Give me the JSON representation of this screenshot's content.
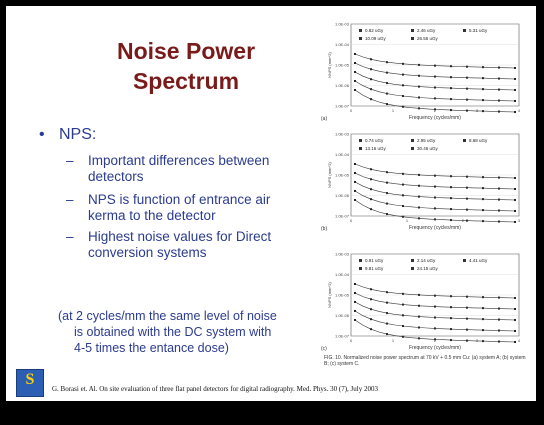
{
  "slide": {
    "title_line1": "Noise Power",
    "title_line2": "Spectrum",
    "bullet_marker": "•",
    "bullet": "NPS:",
    "sub_marker": "–",
    "subitems": [
      "Important differences between detectors",
      "NPS is function of entrance air kerma to the detector",
      "Highest noise values for Direct conversion systems"
    ],
    "note_lines": [
      "(at 2 cycles/mm the same level of noise",
      "is obtained with the DC system with",
      "4-5 times the entance dose)"
    ],
    "citation": "G. Borasi et. Al. On site evaluation of three flat panel detectors for digital radiography. Med. Phys. 30 (7), July 2003",
    "logo_letter": "S"
  },
  "figure": {
    "panels": [
      {
        "label": "(a)",
        "legend": [
          "0.82 uGy",
          "2.46 uGy",
          "5.31 uGy",
          "10.09 uGy",
          "26.55 uGy"
        ],
        "yticks": [
          "1.0E-03",
          "1.0E-04",
          "1.0E-05",
          "1.0E-06",
          "1.0E-07"
        ],
        "xticks": [
          "0",
          "1",
          "2",
          "3",
          "4"
        ],
        "xlabel": "Frequency (cycles/mm)",
        "ylabel": "NNPS (mm^2)"
      },
      {
        "label": "(b)",
        "legend": [
          "0.74 uGy",
          "2.95 uGy",
          "8.68 uGy",
          "13.16 uGy",
          "30.46 uGy"
        ],
        "yticks": [
          "1.0E-03",
          "1.0E-04",
          "1.0E-05",
          "1.0E-06",
          "1.0E-07"
        ],
        "xticks": [
          "0",
          "1",
          "2",
          "3"
        ],
        "xlabel": "Frequency (cycles/mm)",
        "ylabel": "NNPS (mm^2)"
      },
      {
        "label": "(c)",
        "legend": [
          "0.91 uGy",
          "2.14 uGy",
          "4.41 uGy",
          "9.81 uGy",
          "24.15 uGy"
        ],
        "yticks": [
          "1.0E-03",
          "1.0E-04",
          "1.0E-05",
          "1.0E-06",
          "1.0E-07"
        ],
        "xticks": [
          "0",
          "1",
          "2",
          "3",
          "4"
        ],
        "xlabel": "Frequency (cycles/mm)",
        "ylabel": "NNPS (mm^2)"
      }
    ],
    "caption": "FIG. 10. Normalized noise power spectrum at 70 kV + 0.5 mm Cu: (a) system A; (b) system B; (c) system C."
  },
  "colors": {
    "title": "#7a1b1b",
    "text": "#2b3b8f",
    "background": "#000000",
    "slide": "#ffffff"
  }
}
